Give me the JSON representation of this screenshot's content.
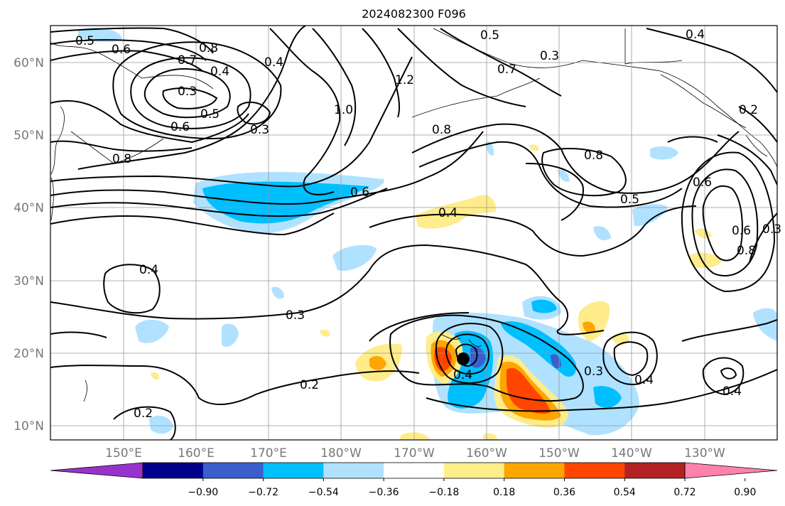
{
  "title": "2024082300 F096",
  "lat_labels": [
    "60°N",
    "50°N",
    "40°N",
    "30°N",
    "20°N",
    "10°N"
  ],
  "lon_labels": [
    "150°E",
    "160°E",
    "170°E",
    "180°W",
    "170°W",
    "160°W",
    "150°W",
    "140°W",
    "130°W"
  ],
  "contour_labels": [
    {
      "text": "0.5"
    },
    {
      "text": "0.6"
    },
    {
      "text": "0.7"
    },
    {
      "text": "0.8"
    },
    {
      "text": "0.4"
    },
    {
      "text": "0.3"
    },
    {
      "text": "0.5"
    },
    {
      "text": "0.6"
    },
    {
      "text": "0.3"
    },
    {
      "text": "0.8"
    },
    {
      "text": "0.4"
    },
    {
      "text": "1.0"
    },
    {
      "text": "1.2"
    },
    {
      "text": "0.5"
    },
    {
      "text": "0.7"
    },
    {
      "text": "0.3"
    },
    {
      "text": "0.8"
    },
    {
      "text": "0.4"
    },
    {
      "text": "0.8"
    },
    {
      "text": "0.6"
    },
    {
      "text": "0.5"
    },
    {
      "text": "0.2"
    },
    {
      "text": "0.6"
    },
    {
      "text": "0.6"
    },
    {
      "text": "0.4"
    },
    {
      "text": "0.4"
    },
    {
      "text": "0.3"
    },
    {
      "text": "0.2"
    },
    {
      "text": "0.4"
    },
    {
      "text": "0.3"
    },
    {
      "text": "0.4"
    },
    {
      "text": "0.4"
    },
    {
      "text": "0.2"
    },
    {
      "text": "0.8"
    },
    {
      "text": "0.3"
    }
  ],
  "colorbar": {
    "colors": [
      "#9932cc",
      "#00008b",
      "#3a5fcd",
      "#00bfff",
      "#b0e2ff",
      "#ffffff",
      "#ffec8b",
      "#ffa500",
      "#ff4500",
      "#b22222",
      "#ff82ab"
    ],
    "ticks": [
      "−0.90",
      "−0.72",
      "−0.54",
      "−0.36",
      "−0.18",
      "0.18",
      "0.36",
      "0.54",
      "0.72",
      "0.90"
    ]
  }
}
